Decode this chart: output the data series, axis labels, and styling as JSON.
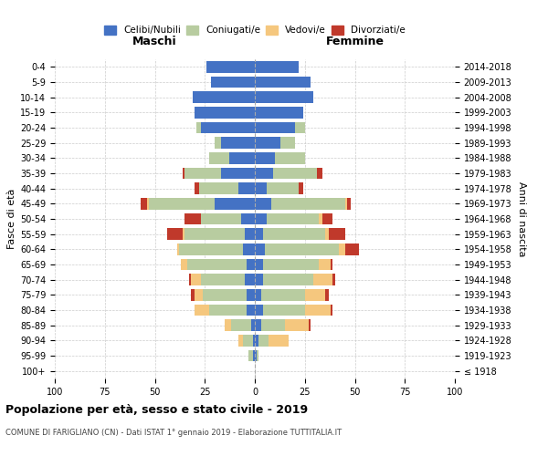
{
  "age_groups": [
    "100+",
    "95-99",
    "90-94",
    "85-89",
    "80-84",
    "75-79",
    "70-74",
    "65-69",
    "60-64",
    "55-59",
    "50-54",
    "45-49",
    "40-44",
    "35-39",
    "30-34",
    "25-29",
    "20-24",
    "15-19",
    "10-14",
    "5-9",
    "0-4"
  ],
  "birth_years": [
    "≤ 1918",
    "1919-1923",
    "1924-1928",
    "1929-1933",
    "1934-1938",
    "1939-1943",
    "1944-1948",
    "1949-1953",
    "1954-1958",
    "1959-1963",
    "1964-1968",
    "1969-1973",
    "1974-1978",
    "1979-1983",
    "1984-1988",
    "1989-1993",
    "1994-1998",
    "1999-2003",
    "2004-2008",
    "2009-2013",
    "2014-2018"
  ],
  "male": {
    "celibe": [
      0,
      1,
      1,
      2,
      4,
      4,
      5,
      4,
      6,
      5,
      7,
      20,
      8,
      17,
      13,
      17,
      27,
      30,
      31,
      22,
      24
    ],
    "coniugato": [
      0,
      2,
      5,
      10,
      19,
      22,
      22,
      30,
      32,
      30,
      20,
      33,
      20,
      18,
      10,
      3,
      2,
      0,
      0,
      0,
      0
    ],
    "vedovo": [
      0,
      0,
      2,
      3,
      7,
      4,
      5,
      3,
      1,
      1,
      0,
      1,
      0,
      0,
      0,
      0,
      0,
      0,
      0,
      0,
      0
    ],
    "divorziato": [
      0,
      0,
      0,
      0,
      0,
      2,
      1,
      0,
      0,
      8,
      8,
      3,
      2,
      1,
      0,
      0,
      0,
      0,
      0,
      0,
      0
    ]
  },
  "female": {
    "nubile": [
      0,
      1,
      2,
      3,
      4,
      3,
      4,
      4,
      5,
      4,
      6,
      8,
      6,
      9,
      10,
      13,
      20,
      24,
      29,
      28,
      22
    ],
    "coniugata": [
      0,
      1,
      5,
      12,
      21,
      22,
      25,
      28,
      37,
      31,
      26,
      37,
      16,
      22,
      15,
      7,
      5,
      0,
      0,
      0,
      0
    ],
    "vedova": [
      0,
      0,
      10,
      12,
      13,
      10,
      10,
      6,
      3,
      2,
      2,
      1,
      0,
      0,
      0,
      0,
      0,
      0,
      0,
      0,
      0
    ],
    "divorziata": [
      0,
      0,
      0,
      1,
      1,
      2,
      1,
      1,
      7,
      8,
      5,
      2,
      2,
      3,
      0,
      0,
      0,
      0,
      0,
      0,
      0
    ]
  },
  "colors": {
    "celibe": "#4472c4",
    "coniugato": "#b8cca0",
    "vedovo": "#f5c77e",
    "divorziato": "#c0392b"
  },
  "xlim": 100,
  "title": "Popolazione per età, sesso e stato civile - 2019",
  "subtitle": "COMUNE DI FARIGLIANO (CN) - Dati ISTAT 1° gennaio 2019 - Elaborazione TUTTITALIA.IT",
  "ylabel_left": "Fasce di età",
  "ylabel_right": "Anni di nascita",
  "xlabel_left": "Maschi",
  "xlabel_right": "Femmine",
  "legend_labels": [
    "Celibi/Nubili",
    "Coniugati/e",
    "Vedovi/e",
    "Divorziati/e"
  ],
  "background_color": "#ffffff",
  "grid_color": "#cccccc"
}
